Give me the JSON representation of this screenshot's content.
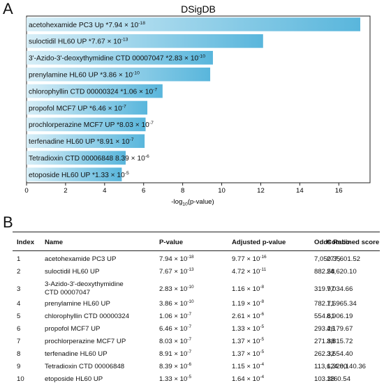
{
  "panel_labels": {
    "a": "A",
    "b": "B"
  },
  "chart_data": {
    "type": "bar",
    "orientation": "horizontal",
    "title": "DSigDB",
    "xlabel_parts": [
      "-log",
      "10",
      "(p-value)"
    ],
    "xlim": [
      0,
      17.6
    ],
    "xticks": [
      0,
      2,
      4,
      6,
      8,
      10,
      12,
      14,
      16
    ],
    "grid": false,
    "categories": [
      "acetohexamide PC3 Up",
      "suloctidil HL60 UP",
      "3'-Azido-3'-deoxythymidine CTD 00007047",
      "prenylamine HL60 UP",
      "chlorophyllin CTD 00000324",
      "propofol MCF7 UP",
      "prochlorperazine MCF7 UP",
      "terfenadine HL60 UP",
      "Tetradioxin CTD 00006848",
      "etoposide HL60 UP"
    ],
    "values": [
      17.1,
      12.12,
      9.55,
      9.41,
      6.97,
      6.19,
      6.1,
      6.05,
      5.08,
      4.88
    ],
    "pvalue_labels": [
      {
        "prefix": "*",
        "mantissa": "7.94",
        "exp": "-18"
      },
      {
        "prefix": "*",
        "mantissa": "7.67",
        "exp": "-13"
      },
      {
        "prefix": "*",
        "mantissa": "2.83",
        "exp": "-10"
      },
      {
        "prefix": "*",
        "mantissa": "3.86",
        "exp": "-10"
      },
      {
        "prefix": "*",
        "mantissa": "1.06",
        "exp": "-7"
      },
      {
        "prefix": "*",
        "mantissa": "6.46",
        "exp": "-7"
      },
      {
        "prefix": "*",
        "mantissa": "8.03",
        "exp": "-7"
      },
      {
        "prefix": "*",
        "mantissa": "8.91",
        "exp": "-7"
      },
      {
        "prefix": "",
        "mantissa": "8.39",
        "exp": "-6"
      },
      {
        "prefix": "*",
        "mantissa": "1.33",
        "exp": "-5"
      }
    ],
    "bar_color_light": "#d7eef7",
    "bar_color_dark": "#59b6dc",
    "times_symbol": "× 10"
  },
  "table": {
    "headers": [
      "Index",
      "Name",
      "P-value",
      "Adjusted p-value",
      "Odds Ratio",
      "Combined score"
    ],
    "rows": [
      {
        "index": "1",
        "name": [
          "acetohexamide PC3 UP"
        ],
        "p": [
          "7.94",
          "-18"
        ],
        "adj": [
          "9.77",
          "-16"
        ],
        "odds": "7,050.35",
        "score": "277,601.52"
      },
      {
        "index": "2",
        "name": [
          "suloctidil HL60 UP"
        ],
        "p": [
          "7.67",
          "-13"
        ],
        "adj": [
          "4.72",
          "-11"
        ],
        "odds": "882.58",
        "score": "24,620.10"
      },
      {
        "index": "3",
        "name": [
          "3-Azido-3'-deoxythymidine",
          "CTD 00007047"
        ],
        "p": [
          "2.83",
          "-10"
        ],
        "adj": [
          "1.16",
          "-8"
        ],
        "odds": "319.97",
        "score": "7,034.66"
      },
      {
        "index": "4",
        "name": [
          "prenylamine HL60 UP"
        ],
        "p": [
          "3.86",
          "-10"
        ],
        "adj": [
          "1.19",
          "-8"
        ],
        "odds": "782.71",
        "score": "1,6965.34"
      },
      {
        "index": "5",
        "name": [
          "chlorophyllin CTD 00000324"
        ],
        "p": [
          "1.06",
          "-7"
        ],
        "adj": [
          "2.61",
          "-6"
        ],
        "odds": "554.61",
        "score": "8,906.19"
      },
      {
        "index": "6",
        "name": [
          "propofol MCF7 UP"
        ],
        "p": [
          "6.46",
          "-7"
        ],
        "adj": [
          "1.33",
          "-5"
        ],
        "odds": "293.26",
        "score": "4,179.67"
      },
      {
        "index": "7",
        "name": [
          "prochlorperazine MCF7 UP"
        ],
        "p": [
          "8.03",
          "-7"
        ],
        "adj": [
          "1.37",
          "-5"
        ],
        "odds": "271.88",
        "score": "3,815.72"
      },
      {
        "index": "8",
        "name": [
          "terfenadine HL60 UP"
        ],
        "p": [
          "8.91",
          "-7"
        ],
        "adj": [
          "1.37",
          "-5"
        ],
        "odds": "262.32",
        "score": "3,654.40"
      },
      {
        "index": "9",
        "name": [
          "Tetradioxin CTD 00006848"
        ],
        "p": [
          "8.39",
          "-6"
        ],
        "adj": [
          "1.15",
          "-4"
        ],
        "odds": "113,624.00",
        "score": "1,328,140.36"
      },
      {
        "index": "10",
        "name": [
          "etoposide HL60 UP"
        ],
        "p": [
          "1.33",
          "-5"
        ],
        "adj": [
          "1.64",
          "-4"
        ],
        "odds": "103.38",
        "score": "1160.54"
      }
    ]
  }
}
